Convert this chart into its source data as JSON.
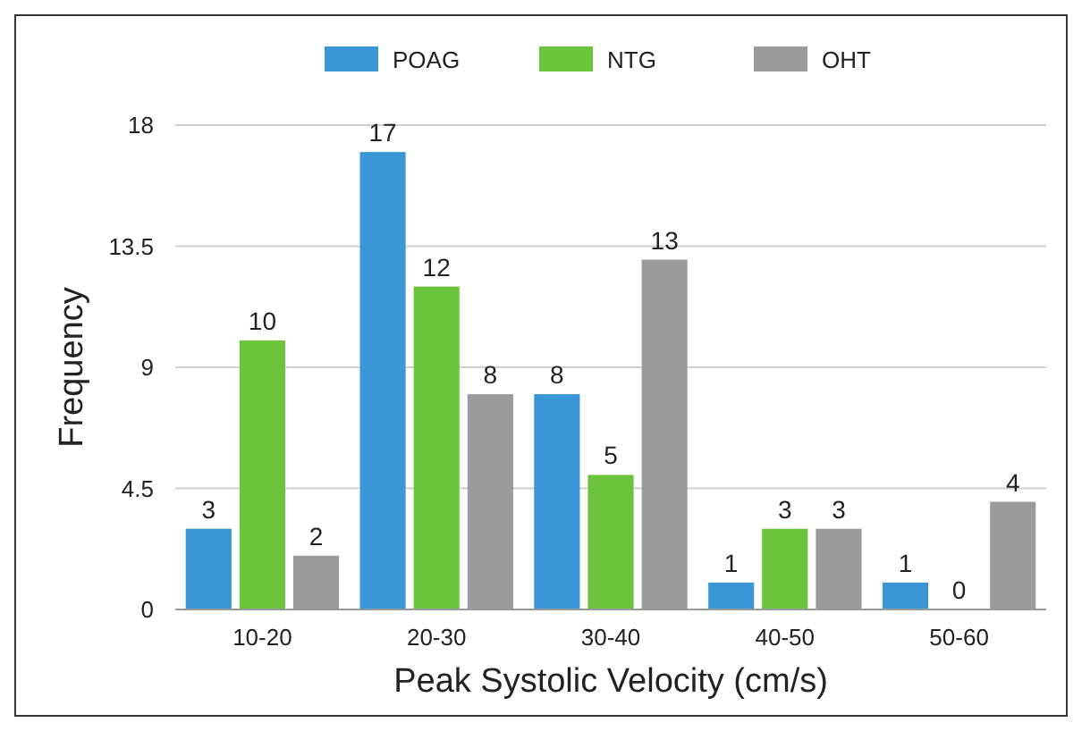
{
  "chart_data": {
    "type": "bar",
    "xlabel": "Peak Systolic Velocity (cm/s)",
    "ylabel": "Frequency",
    "categories": [
      "10-20",
      "20-30",
      "30-40",
      "40-50",
      "50-60"
    ],
    "series": [
      {
        "name": "POAG",
        "color": "#3b96d8",
        "values": [
          3,
          17,
          8,
          1,
          1
        ]
      },
      {
        "name": "NTG",
        "color": "#6cc33c",
        "values": [
          10,
          12,
          5,
          3,
          0
        ]
      },
      {
        "name": "OHT",
        "color": "#9b9b9b",
        "values": [
          2,
          8,
          13,
          3,
          4
        ]
      }
    ],
    "ylim": [
      0,
      18
    ],
    "yticks": [
      0,
      4.5,
      9,
      13.5,
      18
    ],
    "grid": "y",
    "legend": "top",
    "data_labels": true
  }
}
